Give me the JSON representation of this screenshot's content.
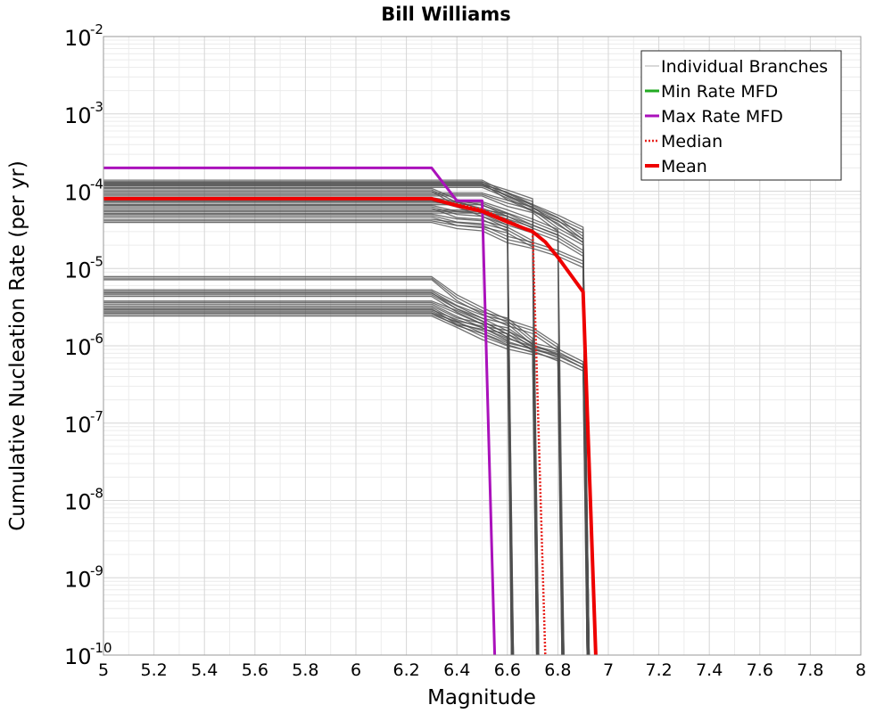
{
  "chart_data": {
    "type": "line",
    "title": "Bill Williams",
    "xlabel": "Magnitude",
    "ylabel": "Cumulative Nucleation Rate (per yr)",
    "xlim": [
      5,
      8
    ],
    "ylim": [
      1e-10,
      0.01
    ],
    "yscale": "log",
    "grid": true,
    "legend_position": "top-right",
    "x_ticks": [
      "5",
      "5.2",
      "5.4",
      "5.6",
      "5.8",
      "6",
      "6.2",
      "6.4",
      "6.6",
      "6.8",
      "7",
      "7.2",
      "7.4",
      "7.6",
      "7.8",
      "8"
    ],
    "y_ticks": [
      {
        "base": "10",
        "exp": "-10",
        "value": 1e-10
      },
      {
        "base": "10",
        "exp": "-9",
        "value": 1e-09
      },
      {
        "base": "10",
        "exp": "-8",
        "value": 1e-08
      },
      {
        "base": "10",
        "exp": "-7",
        "value": 1e-07
      },
      {
        "base": "10",
        "exp": "-6",
        "value": 1e-06
      },
      {
        "base": "10",
        "exp": "-5",
        "value": 1e-05
      },
      {
        "base": "10",
        "exp": "-4",
        "value": 0.0001
      },
      {
        "base": "10",
        "exp": "-3",
        "value": 0.001
      },
      {
        "base": "10",
        "exp": "-2",
        "value": 0.01
      }
    ],
    "legend": [
      {
        "label": "Individual Branches",
        "color": "#b0b0b0",
        "style": "thin"
      },
      {
        "label": "Min Rate MFD",
        "color": "#22aa22",
        "style": "solid"
      },
      {
        "label": "Max Rate MFD",
        "color": "#aa11bb",
        "style": "solid"
      },
      {
        "label": "Median",
        "color": "#e8201b",
        "style": "dotted"
      },
      {
        "label": "Mean",
        "color": "#ee0000",
        "style": "thick"
      }
    ],
    "branches_color": "#4d4d4d",
    "branch_groups": [
      {
        "level": 0.000135,
        "plateau_end": 6.5,
        "tail": [
          [
            6.6,
            9e-05
          ],
          [
            6.7,
            6e-05
          ],
          [
            6.8,
            4e-05
          ],
          [
            6.9,
            2.5e-05
          ]
        ],
        "cutoff": 6.92
      },
      {
        "level": 0.000125,
        "plateau_end": 6.5,
        "tail": [
          [
            6.6,
            9.5e-05
          ],
          [
            6.7,
            7e-05
          ]
        ],
        "cutoff": 6.72
      },
      {
        "level": 0.000115,
        "plateau_end": 6.5,
        "tail": [
          [
            6.6,
            8.5e-05
          ],
          [
            6.7,
            6.5e-05
          ],
          [
            6.8,
            4.5e-05
          ],
          [
            6.9,
            3e-05
          ]
        ],
        "cutoff": 6.92
      },
      {
        "level": 0.000105,
        "plateau_end": 6.3,
        "tail": [
          [
            6.4,
            7.5e-05
          ],
          [
            6.5,
            6e-05
          ],
          [
            6.6,
            4.5e-05
          ]
        ],
        "cutoff": 6.62
      },
      {
        "level": 9e-05,
        "plateau_end": 6.5,
        "tail": [
          [
            6.6,
            7e-05
          ],
          [
            6.7,
            5.5e-05
          ],
          [
            6.8,
            3.5e-05
          ],
          [
            6.9,
            2.2e-05
          ]
        ],
        "cutoff": 6.92
      },
      {
        "level": 8e-05,
        "plateau_end": 6.3,
        "tail": [
          [
            6.4,
            6.5e-05
          ],
          [
            6.5,
            5.5e-05
          ],
          [
            6.6,
            4e-05
          ],
          [
            6.7,
            3e-05
          ]
        ],
        "cutoff": 6.72
      },
      {
        "level": 7e-05,
        "plateau_end": 6.5,
        "tail": [
          [
            6.6,
            5.5e-05
          ],
          [
            6.7,
            4e-05
          ],
          [
            6.8,
            2.8e-05
          ]
        ],
        "cutoff": 6.82
      },
      {
        "level": 6.2e-05,
        "plateau_end": 6.3,
        "tail": [
          [
            6.4,
            5e-05
          ],
          [
            6.5,
            4.5e-05
          ],
          [
            6.6,
            3.5e-05
          ]
        ],
        "cutoff": 6.62
      },
      {
        "level": 5.5e-05,
        "plateau_end": 6.5,
        "tail": [
          [
            6.6,
            4.5e-05
          ],
          [
            6.7,
            3.5e-05
          ],
          [
            6.8,
            2.5e-05
          ],
          [
            6.9,
            1.5e-05
          ]
        ],
        "cutoff": 6.92
      },
      {
        "level": 4.8e-05,
        "plateau_end": 6.3,
        "tail": [
          [
            6.4,
            4.2e-05
          ],
          [
            6.5,
            3.8e-05
          ],
          [
            6.6,
            3e-05
          ],
          [
            6.7,
            2.2e-05
          ]
        ],
        "cutoff": 6.72
      },
      {
        "level": 4.2e-05,
        "plateau_end": 6.3,
        "tail": [
          [
            6.4,
            3.6e-05
          ],
          [
            6.5,
            3.2e-05
          ],
          [
            6.6,
            2.5e-05
          ],
          [
            6.7,
            2e-05
          ],
          [
            6.8,
            1.5e-05
          ],
          [
            6.9,
            1.2e-05
          ]
        ],
        "cutoff": 6.92
      },
      {
        "level": 7.5e-06,
        "plateau_end": 6.3,
        "tail": [
          [
            6.4,
            4e-06
          ],
          [
            6.5,
            3e-06
          ],
          [
            6.6,
            2e-06
          ],
          [
            6.7,
            1.5e-06
          ],
          [
            6.8,
            1e-06
          ]
        ],
        "cutoff": 6.82
      },
      {
        "level": 5e-06,
        "plateau_end": 6.3,
        "tail": [
          [
            6.4,
            3.5e-06
          ],
          [
            6.5,
            2.5e-06
          ],
          [
            6.6,
            2e-06
          ],
          [
            6.7,
            1.2e-06
          ]
        ],
        "cutoff": 6.72
      },
      {
        "level": 4.6e-06,
        "plateau_end": 6.3,
        "tail": [
          [
            6.4,
            3e-06
          ],
          [
            6.5,
            2e-06
          ],
          [
            6.6,
            1.5e-06
          ],
          [
            6.7,
            1e-06
          ],
          [
            6.8,
            8e-07
          ],
          [
            6.9,
            6e-07
          ]
        ],
        "cutoff": 6.92
      },
      {
        "level": 3.6e-06,
        "plateau_end": 6.3,
        "tail": [
          [
            6.4,
            2.5e-06
          ],
          [
            6.5,
            2e-06
          ],
          [
            6.6,
            1.3e-06
          ]
        ],
        "cutoff": 6.62
      },
      {
        "level": 3.2e-06,
        "plateau_end": 6.3,
        "tail": [
          [
            6.4,
            2.2e-06
          ],
          [
            6.5,
            1.8e-06
          ],
          [
            6.6,
            1.5e-06
          ],
          [
            6.7,
            1e-06
          ],
          [
            6.8,
            7e-07
          ]
        ],
        "cutoff": 6.82
      },
      {
        "level": 2.8e-06,
        "plateau_end": 6.3,
        "tail": [
          [
            6.4,
            2e-06
          ],
          [
            6.5,
            1.5e-06
          ],
          [
            6.6,
            1.2e-06
          ],
          [
            6.7,
            9e-07
          ],
          [
            6.8,
            7e-07
          ],
          [
            6.9,
            5.5e-07
          ]
        ],
        "cutoff": 6.92
      },
      {
        "level": 2.5e-06,
        "plateau_end": 6.3,
        "tail": [
          [
            6.4,
            1.8e-06
          ],
          [
            6.5,
            1.4e-06
          ],
          [
            6.6,
            1e-06
          ],
          [
            6.7,
            8e-07
          ]
        ],
        "cutoff": 6.72
      }
    ],
    "series": [
      {
        "name": "Max Rate MFD",
        "color": "#aa11bb",
        "x": [
          5.0,
          6.3,
          6.4,
          6.5,
          6.55
        ],
        "y": [
          0.0002,
          0.0002,
          7.5e-05,
          7.5e-05,
          1e-10
        ]
      },
      {
        "name": "Median",
        "color": "#e8201b",
        "x": [
          5.0,
          6.3,
          6.4,
          6.5,
          6.6,
          6.7,
          6.75
        ],
        "y": [
          8e-05,
          8e-05,
          6.8e-05,
          5.8e-05,
          4.2e-05,
          3e-05,
          1e-10
        ]
      },
      {
        "name": "Mean",
        "color": "#ee0000",
        "x": [
          5.0,
          6.3,
          6.4,
          6.5,
          6.6,
          6.7,
          6.75,
          6.8,
          6.9,
          6.95
        ],
        "y": [
          8e-05,
          8e-05,
          6.5e-05,
          5.5e-05,
          4e-05,
          3e-05,
          2.2e-05,
          1.4e-05,
          5e-06,
          1e-10
        ]
      }
    ]
  }
}
